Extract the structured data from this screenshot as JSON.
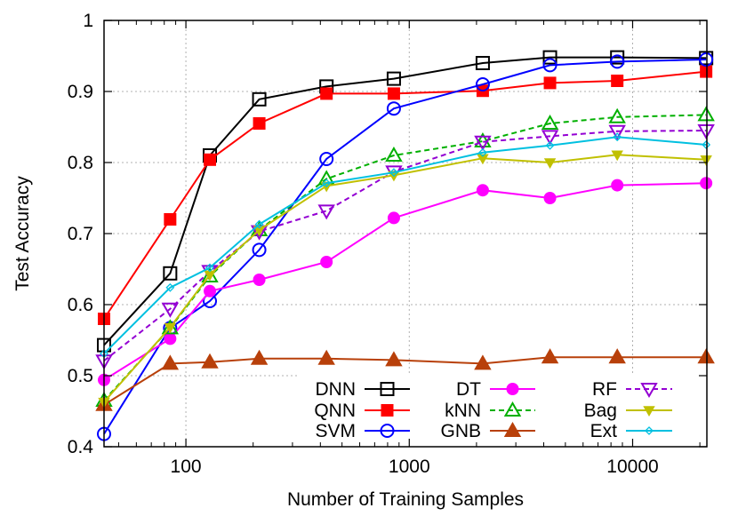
{
  "chart_data": {
    "type": "line",
    "xlabel": "Number of Training Samples",
    "ylabel": "Test Accuracy",
    "xscale": "log",
    "xlim": [
      43,
      21500
    ],
    "ylim": [
      0.4,
      1.0
    ],
    "grid": true,
    "legend_position": "bottom-right",
    "x_ticks": [
      100,
      1000,
      10000
    ],
    "x_tick_labels": [
      "100",
      "1000",
      "10000"
    ],
    "y_ticks": [
      0.4,
      0.5,
      0.6,
      0.7,
      0.8,
      0.9,
      1.0
    ],
    "y_tick_labels": [
      "0.4",
      "0.5",
      "0.6",
      "0.7",
      "0.8",
      "0.9",
      "1"
    ],
    "x": [
      43,
      85,
      128,
      213,
      426,
      853,
      2133,
      4266,
      8533,
      21333
    ],
    "series": [
      {
        "name": "DNN",
        "color": "#000000",
        "marker": "square-open",
        "dash": "solid",
        "values": [
          0.543,
          0.644,
          0.81,
          0.889,
          0.907,
          0.918,
          0.94,
          0.948,
          0.948,
          0.947
        ]
      },
      {
        "name": "QNN",
        "color": "#ff0000",
        "marker": "square-filled",
        "dash": "solid",
        "values": [
          0.58,
          0.72,
          0.804,
          0.855,
          0.897,
          0.897,
          0.901,
          0.912,
          0.915,
          0.928
        ]
      },
      {
        "name": "SVM",
        "color": "#0000ff",
        "marker": "circle-open",
        "dash": "solid",
        "values": [
          0.418,
          0.567,
          0.605,
          0.677,
          0.805,
          0.876,
          0.91,
          0.937,
          0.942,
          0.945
        ]
      },
      {
        "name": "DT",
        "color": "#ff00ff",
        "marker": "circle-filled",
        "dash": "solid",
        "values": [
          0.494,
          0.552,
          0.619,
          0.635,
          0.66,
          0.722,
          0.761,
          0.75,
          0.768,
          0.771
        ]
      },
      {
        "name": "kNN",
        "color": "#00b000",
        "marker": "triangle-up-open",
        "dash": "dashed",
        "values": [
          0.465,
          0.567,
          0.64,
          0.705,
          0.777,
          0.81,
          0.83,
          0.855,
          0.864,
          0.867
        ]
      },
      {
        "name": "GNB",
        "color": "#b8400a",
        "marker": "triangle-up-filled",
        "dash": "solid",
        "values": [
          0.459,
          0.517,
          0.519,
          0.524,
          0.524,
          0.522,
          0.517,
          0.526,
          0.526,
          0.526
        ]
      },
      {
        "name": "RF",
        "color": "#9400d3",
        "marker": "triangle-down-open",
        "dash": "dashed",
        "values": [
          0.521,
          0.594,
          0.647,
          0.703,
          0.732,
          0.787,
          0.829,
          0.837,
          0.844,
          0.845
        ]
      },
      {
        "name": "Bag",
        "color": "#c0c000",
        "marker": "triangle-down-filled",
        "dash": "solid",
        "values": [
          0.463,
          0.568,
          0.642,
          0.705,
          0.767,
          0.782,
          0.806,
          0.8,
          0.811,
          0.804
        ]
      },
      {
        "name": "Ext",
        "color": "#00c0e0",
        "marker": "diamond-open",
        "dash": "solid",
        "values": [
          0.531,
          0.624,
          0.652,
          0.713,
          0.771,
          0.786,
          0.814,
          0.824,
          0.836,
          0.825
        ]
      }
    ]
  }
}
